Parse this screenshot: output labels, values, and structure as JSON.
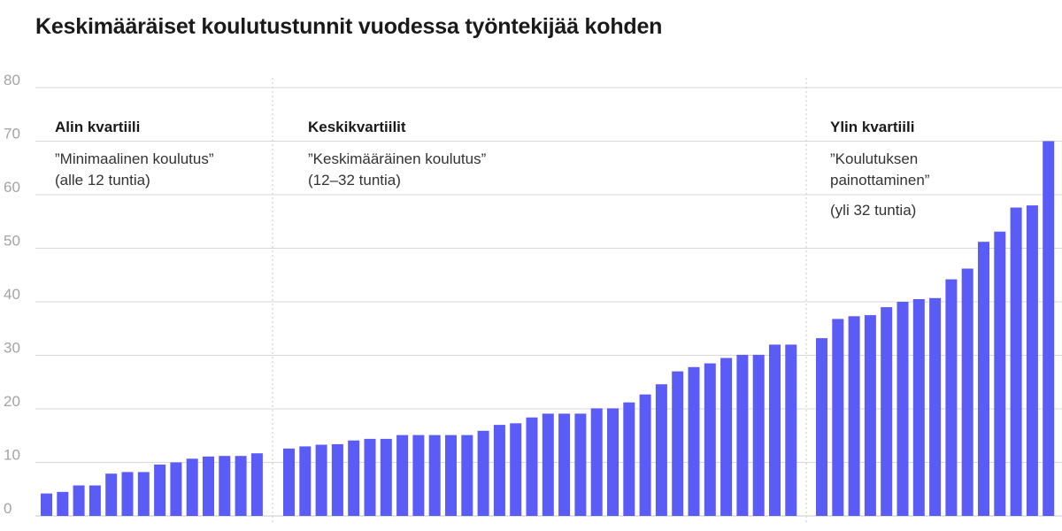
{
  "title": "Keskimääräiset koulutustunnit vuodessa työntekijää kohden",
  "groups": [
    {
      "heading": "Alin kvartiili",
      "line1": "”Minimaalinen koulutus”",
      "line2": "(alle 12 tuntia)",
      "extra": ""
    },
    {
      "heading": "Keskikvartiilit",
      "line1": "”Keskimääräinen koulutus”",
      "line2": "(12–32 tuntia)",
      "extra": ""
    },
    {
      "heading": "Ylin kvartiili",
      "line1": "”Koulutuksen",
      "line2": "painottaminen”",
      "extra": "(yli 32 tuntia)"
    }
  ],
  "colors": {
    "bar": "#5b5bf5",
    "grid": "#d8d8d8"
  },
  "chart_data": {
    "type": "bar",
    "title": "Keskimääräiset koulutustunnit vuodessa työntekijää kohden",
    "xlabel": "",
    "ylabel": "",
    "ylim": [
      0,
      80
    ],
    "yticks": [
      0,
      10,
      20,
      30,
      40,
      50,
      60,
      70,
      80
    ],
    "grid": true,
    "series": [
      {
        "group": "Alin kvartiili",
        "values": [
          4.2,
          4.5,
          5.7,
          5.7,
          7.9,
          8.2,
          8.2,
          9.6,
          10.0,
          10.7,
          11.1,
          11.2,
          11.2,
          11.7
        ]
      },
      {
        "group": "Keskikvartiilit",
        "values": [
          12.6,
          13.0,
          13.3,
          13.4,
          14.1,
          14.4,
          14.4,
          15.1,
          15.1,
          15.1,
          15.1,
          15.1,
          15.9,
          17.0,
          17.3,
          18.4,
          19.1,
          19.1,
          19.1,
          20.1,
          20.1,
          21.2,
          22.7,
          24.6,
          27.0,
          27.8,
          28.5,
          29.5,
          30.1,
          30.1,
          32.0,
          32.0
        ]
      },
      {
        "group": "Ylin kvartiili",
        "values": [
          33.2,
          36.8,
          37.3,
          37.5,
          39.0,
          40.0,
          40.5,
          40.7,
          44.2,
          46.2,
          51.2,
          53.1,
          57.6,
          58.0,
          70.0
        ]
      }
    ]
  }
}
